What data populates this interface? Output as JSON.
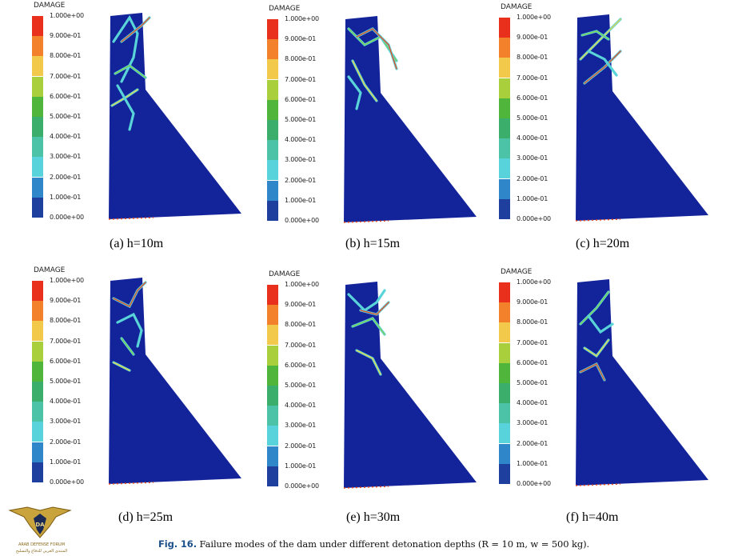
{
  "legend": {
    "title": "DAMAGE",
    "ticks": [
      "1.000e+00",
      "9.000e-01",
      "8.000e-01",
      "7.000e-01",
      "6.000e-01",
      "5.000e-01",
      "4.000e-01",
      "3.000e-01",
      "2.000e-01",
      "1.000e-01",
      "0.000e+00"
    ],
    "colors": [
      "#e8301c",
      "#f3802b",
      "#f2c94a",
      "#a9cf3c",
      "#4fb53b",
      "#3cae6b",
      "#4cc2a6",
      "#58d3dc",
      "#2f86c9",
      "#1f3f9e"
    ]
  },
  "panels": [
    {
      "caption": "(a) h=10m"
    },
    {
      "caption": "(b) h=15m"
    },
    {
      "caption": "(c) h=20m"
    },
    {
      "caption": "(d) h=25m"
    },
    {
      "caption": "(e) h=30m"
    },
    {
      "caption": "(f) h=40m"
    }
  ],
  "figure_caption": {
    "label": "Fig. 16.",
    "text": "Failure modes of the dam under different detonation depths (R = 10 m, w = 500 kg)."
  },
  "watermark": {
    "initials": "DA",
    "line1": "ARAB DEFENSE FORUM",
    "line2": "المنتدى العربي للدفاع والتسليح"
  },
  "colors": {
    "dam_fill": "#13239a",
    "crack_cyan": "#59d4d8",
    "crack_green": "#7fd04a",
    "crack_yellow": "#e8d44a",
    "crack_red": "#e84a22",
    "caption_label": "#1b4f8a"
  }
}
